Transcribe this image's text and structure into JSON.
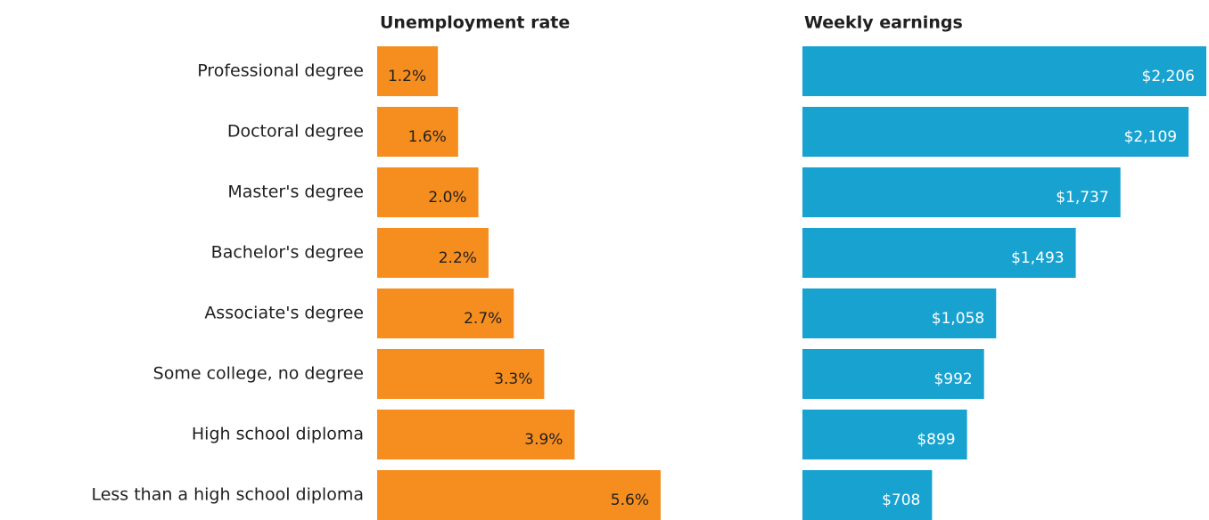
{
  "chart_data": [
    {
      "type": "bar",
      "title": "Unemployment rate",
      "categories": [
        "Professional degree",
        "Doctoral degree",
        "Master's degree",
        "Bachelor's degree",
        "Associate's degree",
        "Some college, no degree",
        "High school diploma",
        "Less than a high school diploma"
      ],
      "values": [
        1.2,
        1.6,
        2.0,
        2.2,
        2.7,
        3.3,
        3.9,
        5.6
      ],
      "value_labels": [
        "1.2%",
        "1.6%",
        "2.0%",
        "2.2%",
        "2.7%",
        "3.3%",
        "3.9%",
        "5.6%"
      ],
      "color": "#f68e1f"
    },
    {
      "type": "bar",
      "title": "Weekly earnings",
      "values": [
        2206,
        2109,
        1737,
        1493,
        1058,
        992,
        899,
        708
      ],
      "value_labels": [
        "$2,206",
        "$2,109",
        "$1,737",
        "$1,493",
        "$1,058",
        "$992",
        "$899",
        "$708"
      ],
      "color": "#17a2d0"
    }
  ]
}
